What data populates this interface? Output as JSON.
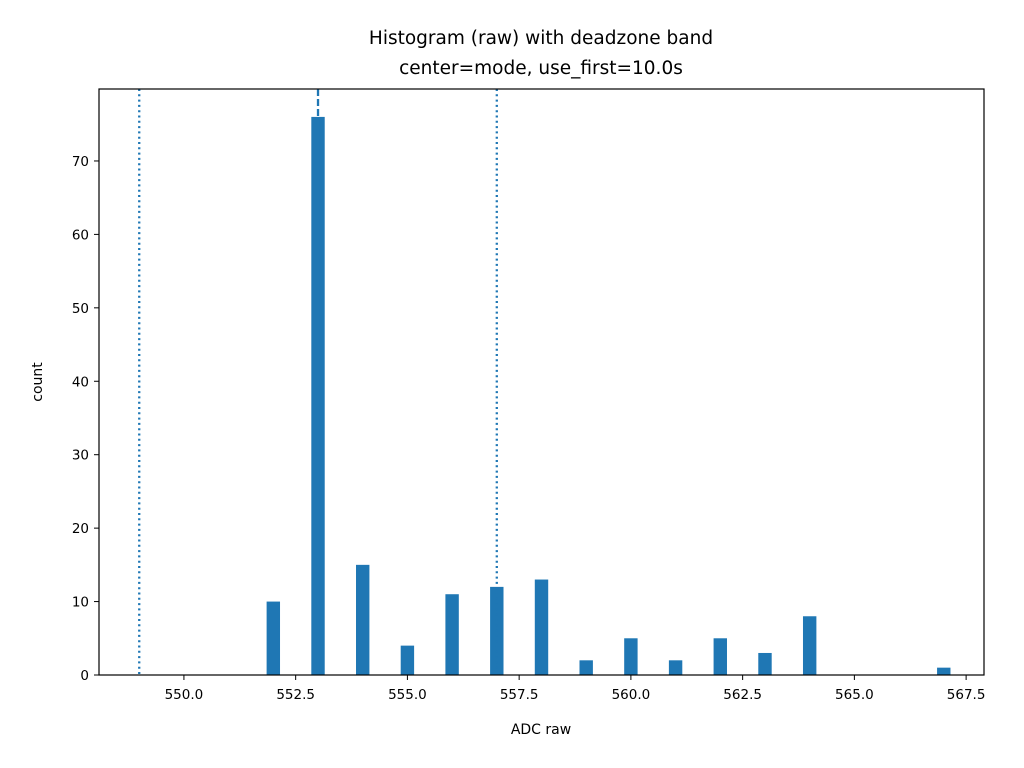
{
  "chart_data": {
    "type": "bar",
    "title": "Histogram (raw) with deadzone band",
    "subtitle": "center=mode, use_first=10.0s",
    "xlabel": "ADC raw",
    "ylabel": "count",
    "xlim": [
      548.1,
      567.9
    ],
    "ylim": [
      0,
      79.8
    ],
    "xticks": [
      "550.0",
      "552.5",
      "555.0",
      "557.5",
      "560.0",
      "562.5",
      "565.0",
      "567.5"
    ],
    "yticks": [
      "0",
      "10",
      "20",
      "30",
      "40",
      "50",
      "60",
      "70"
    ],
    "bar_width": 0.3,
    "bars": [
      {
        "x": 552.0,
        "count": 10
      },
      {
        "x": 553.0,
        "count": 76
      },
      {
        "x": 554.0,
        "count": 15
      },
      {
        "x": 555.0,
        "count": 4
      },
      {
        "x": 556.0,
        "count": 11
      },
      {
        "x": 557.0,
        "count": 12
      },
      {
        "x": 558.0,
        "count": 13
      },
      {
        "x": 559.0,
        "count": 2
      },
      {
        "x": 560.0,
        "count": 5
      },
      {
        "x": 561.0,
        "count": 2
      },
      {
        "x": 562.0,
        "count": 5
      },
      {
        "x": 563.0,
        "count": 3
      },
      {
        "x": 564.0,
        "count": 8
      },
      {
        "x": 567.0,
        "count": 1
      }
    ],
    "vlines": [
      {
        "x": 553.0,
        "style": "dashed"
      },
      {
        "x": 549.0,
        "style": "dotted"
      },
      {
        "x": 557.0,
        "style": "dotted"
      }
    ],
    "bar_color": "#1f77b4",
    "line_color": "#1f77b4",
    "grid": false
  }
}
